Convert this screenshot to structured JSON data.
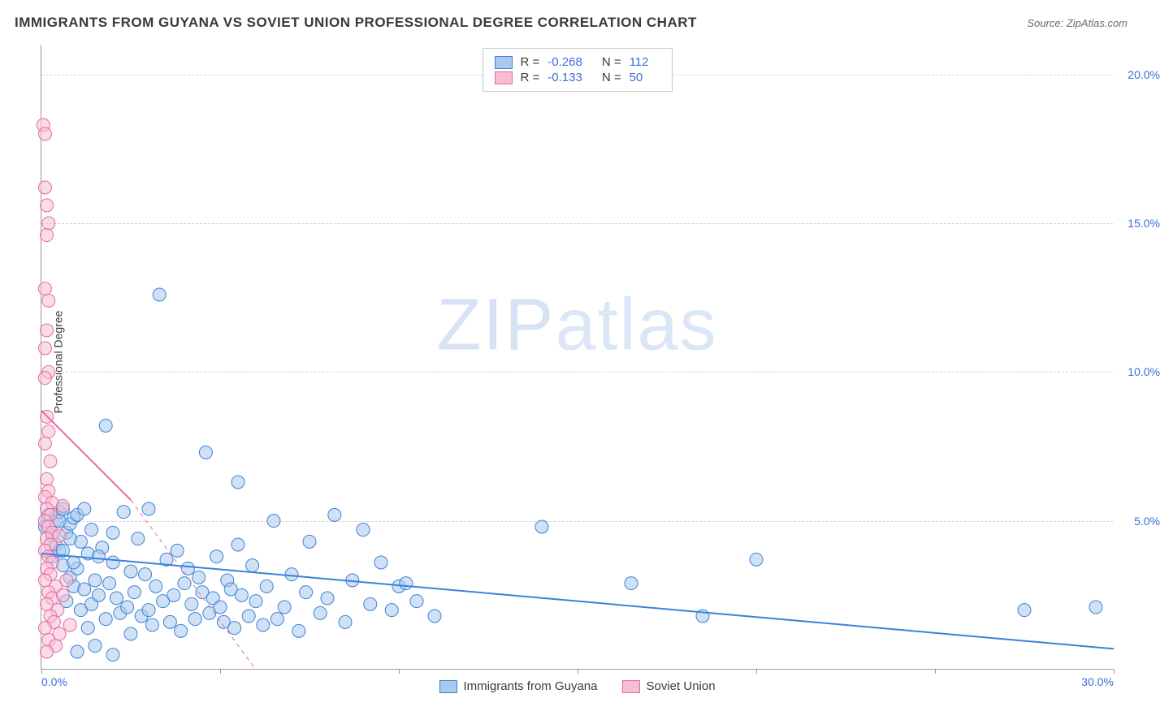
{
  "header": {
    "title": "IMMIGRANTS FROM GUYANA VS SOVIET UNION PROFESSIONAL DEGREE CORRELATION CHART",
    "source": "Source: ZipAtlas.com"
  },
  "watermark": {
    "bold": "ZIP",
    "light": "atlas"
  },
  "chart": {
    "type": "scatter",
    "ylabel": "Professional Degree",
    "xlim": [
      0,
      30
    ],
    "ylim": [
      0,
      21
    ],
    "xtick_positions": [
      0,
      5,
      10,
      15,
      20,
      25,
      30
    ],
    "xtick_labels": [
      "0.0%",
      "",
      "",
      "",
      "",
      "",
      "30.0%"
    ],
    "ytick_positions": [
      5,
      10,
      15,
      20
    ],
    "ytick_labels": [
      "5.0%",
      "10.0%",
      "15.0%",
      "20.0%"
    ],
    "background_color": "#ffffff",
    "grid_color": "#d5d5d5",
    "axis_color": "#9a9a9a",
    "tick_label_color": "#3b6fd6",
    "label_color": "#3a3a3a",
    "marker_radius": 8,
    "marker_opacity": 0.55,
    "series": [
      {
        "name": "Immigrants from Guyana",
        "stroke": "#3b82d6",
        "fill": "#a9c9ef",
        "r_label": "R =",
        "r_value": "-0.268",
        "n_label": "N =",
        "n_value": "112",
        "trend": {
          "x1": 0,
          "y1": 3.9,
          "x2": 30,
          "y2": 0.7,
          "dash": "none",
          "width": 2
        },
        "points": [
          [
            0.1,
            4.8
          ],
          [
            0.2,
            5.2
          ],
          [
            0.3,
            4.5
          ],
          [
            0.3,
            3.8
          ],
          [
            0.4,
            5.0
          ],
          [
            0.4,
            4.2
          ],
          [
            0.5,
            5.3
          ],
          [
            0.5,
            4.0
          ],
          [
            0.6,
            3.5
          ],
          [
            0.6,
            5.4
          ],
          [
            0.7,
            4.6
          ],
          [
            0.7,
            2.3
          ],
          [
            0.8,
            3.1
          ],
          [
            0.8,
            4.9
          ],
          [
            0.9,
            2.8
          ],
          [
            0.9,
            5.1
          ],
          [
            1.0,
            0.6
          ],
          [
            1.0,
            3.4
          ],
          [
            1.1,
            2.0
          ],
          [
            1.1,
            4.3
          ],
          [
            1.2,
            2.7
          ],
          [
            1.3,
            3.9
          ],
          [
            1.3,
            1.4
          ],
          [
            1.4,
            2.2
          ],
          [
            1.5,
            3.0
          ],
          [
            1.5,
            0.8
          ],
          [
            1.6,
            2.5
          ],
          [
            1.7,
            4.1
          ],
          [
            1.8,
            1.7
          ],
          [
            1.8,
            8.2
          ],
          [
            1.9,
            2.9
          ],
          [
            2.0,
            0.5
          ],
          [
            2.0,
            3.6
          ],
          [
            2.1,
            2.4
          ],
          [
            2.2,
            1.9
          ],
          [
            2.3,
            5.3
          ],
          [
            2.4,
            2.1
          ],
          [
            2.5,
            3.3
          ],
          [
            2.5,
            1.2
          ],
          [
            2.6,
            2.6
          ],
          [
            2.7,
            4.4
          ],
          [
            2.8,
            1.8
          ],
          [
            2.9,
            3.2
          ],
          [
            3.0,
            2.0
          ],
          [
            3.0,
            5.4
          ],
          [
            3.1,
            1.5
          ],
          [
            3.2,
            2.8
          ],
          [
            3.3,
            12.6
          ],
          [
            3.4,
            2.3
          ],
          [
            3.5,
            3.7
          ],
          [
            3.6,
            1.6
          ],
          [
            3.7,
            2.5
          ],
          [
            3.8,
            4.0
          ],
          [
            3.9,
            1.3
          ],
          [
            4.0,
            2.9
          ],
          [
            4.1,
            3.4
          ],
          [
            4.2,
            2.2
          ],
          [
            4.3,
            1.7
          ],
          [
            4.4,
            3.1
          ],
          [
            4.5,
            2.6
          ],
          [
            4.6,
            7.3
          ],
          [
            4.7,
            1.9
          ],
          [
            4.8,
            2.4
          ],
          [
            4.9,
            3.8
          ],
          [
            5.0,
            2.1
          ],
          [
            5.1,
            1.6
          ],
          [
            5.2,
            3.0
          ],
          [
            5.3,
            2.7
          ],
          [
            5.4,
            1.4
          ],
          [
            5.5,
            4.2
          ],
          [
            5.5,
            6.3
          ],
          [
            5.6,
            2.5
          ],
          [
            5.8,
            1.8
          ],
          [
            5.9,
            3.5
          ],
          [
            6.0,
            2.3
          ],
          [
            6.2,
            1.5
          ],
          [
            6.3,
            2.8
          ],
          [
            6.5,
            5.0
          ],
          [
            6.6,
            1.7
          ],
          [
            6.8,
            2.1
          ],
          [
            7.0,
            3.2
          ],
          [
            7.2,
            1.3
          ],
          [
            7.4,
            2.6
          ],
          [
            7.5,
            4.3
          ],
          [
            7.8,
            1.9
          ],
          [
            8.0,
            2.4
          ],
          [
            8.2,
            5.2
          ],
          [
            8.5,
            1.6
          ],
          [
            8.7,
            3.0
          ],
          [
            9.0,
            4.7
          ],
          [
            9.2,
            2.2
          ],
          [
            9.5,
            3.6
          ],
          [
            9.8,
            2.0
          ],
          [
            10.0,
            2.8
          ],
          [
            10.2,
            2.9
          ],
          [
            10.5,
            2.3
          ],
          [
            11.0,
            1.8
          ],
          [
            14.0,
            4.8
          ],
          [
            16.5,
            2.9
          ],
          [
            18.5,
            1.8
          ],
          [
            20.0,
            3.7
          ],
          [
            27.5,
            2.0
          ],
          [
            29.5,
            2.1
          ],
          [
            0.5,
            5.0
          ],
          [
            1.0,
            5.2
          ],
          [
            1.2,
            5.4
          ],
          [
            1.4,
            4.7
          ],
          [
            0.8,
            4.4
          ],
          [
            0.6,
            4.0
          ],
          [
            0.9,
            3.6
          ],
          [
            1.6,
            3.8
          ],
          [
            2.0,
            4.6
          ]
        ]
      },
      {
        "name": "Soviet Union",
        "stroke": "#e76aa0",
        "fill": "#f6bdd5",
        "r_label": "R =",
        "r_value": "-0.133",
        "n_label": "N =",
        "n_value": "50",
        "trend": {
          "x1": 0,
          "y1": 8.7,
          "x2": 2.5,
          "y2": 5.7,
          "dash": "none",
          "width": 2
        },
        "trend_ext": {
          "x1": 2.5,
          "y1": 5.7,
          "x2": 6.0,
          "y2": 0,
          "dash": "5,5",
          "width": 1
        },
        "points": [
          [
            0.05,
            18.3
          ],
          [
            0.1,
            18.0
          ],
          [
            0.1,
            16.2
          ],
          [
            0.15,
            15.6
          ],
          [
            0.2,
            15.0
          ],
          [
            0.15,
            14.6
          ],
          [
            0.1,
            12.8
          ],
          [
            0.2,
            12.4
          ],
          [
            0.15,
            11.4
          ],
          [
            0.1,
            10.8
          ],
          [
            0.2,
            10.0
          ],
          [
            0.1,
            9.8
          ],
          [
            0.15,
            8.5
          ],
          [
            0.2,
            8.0
          ],
          [
            0.1,
            7.6
          ],
          [
            0.25,
            7.0
          ],
          [
            0.15,
            6.4
          ],
          [
            0.2,
            6.0
          ],
          [
            0.1,
            5.8
          ],
          [
            0.3,
            5.6
          ],
          [
            0.15,
            5.4
          ],
          [
            0.25,
            5.2
          ],
          [
            0.1,
            5.0
          ],
          [
            0.2,
            4.8
          ],
          [
            0.3,
            4.6
          ],
          [
            0.15,
            4.4
          ],
          [
            0.25,
            4.2
          ],
          [
            0.1,
            4.0
          ],
          [
            0.2,
            3.8
          ],
          [
            0.3,
            3.6
          ],
          [
            0.15,
            3.4
          ],
          [
            0.25,
            3.2
          ],
          [
            0.1,
            3.0
          ],
          [
            0.4,
            2.8
          ],
          [
            0.2,
            2.6
          ],
          [
            0.3,
            2.4
          ],
          [
            0.15,
            2.2
          ],
          [
            0.45,
            2.0
          ],
          [
            0.25,
            1.8
          ],
          [
            0.35,
            1.6
          ],
          [
            0.1,
            1.4
          ],
          [
            0.5,
            1.2
          ],
          [
            0.2,
            1.0
          ],
          [
            0.4,
            0.8
          ],
          [
            0.15,
            0.6
          ],
          [
            0.6,
            2.5
          ],
          [
            0.7,
            3.0
          ],
          [
            0.8,
            1.5
          ],
          [
            0.5,
            4.5
          ],
          [
            0.6,
            5.5
          ]
        ]
      }
    ],
    "legend_bottom": [
      {
        "label": "Immigrants from Guyana"
      },
      {
        "label": "Soviet Union"
      }
    ]
  }
}
